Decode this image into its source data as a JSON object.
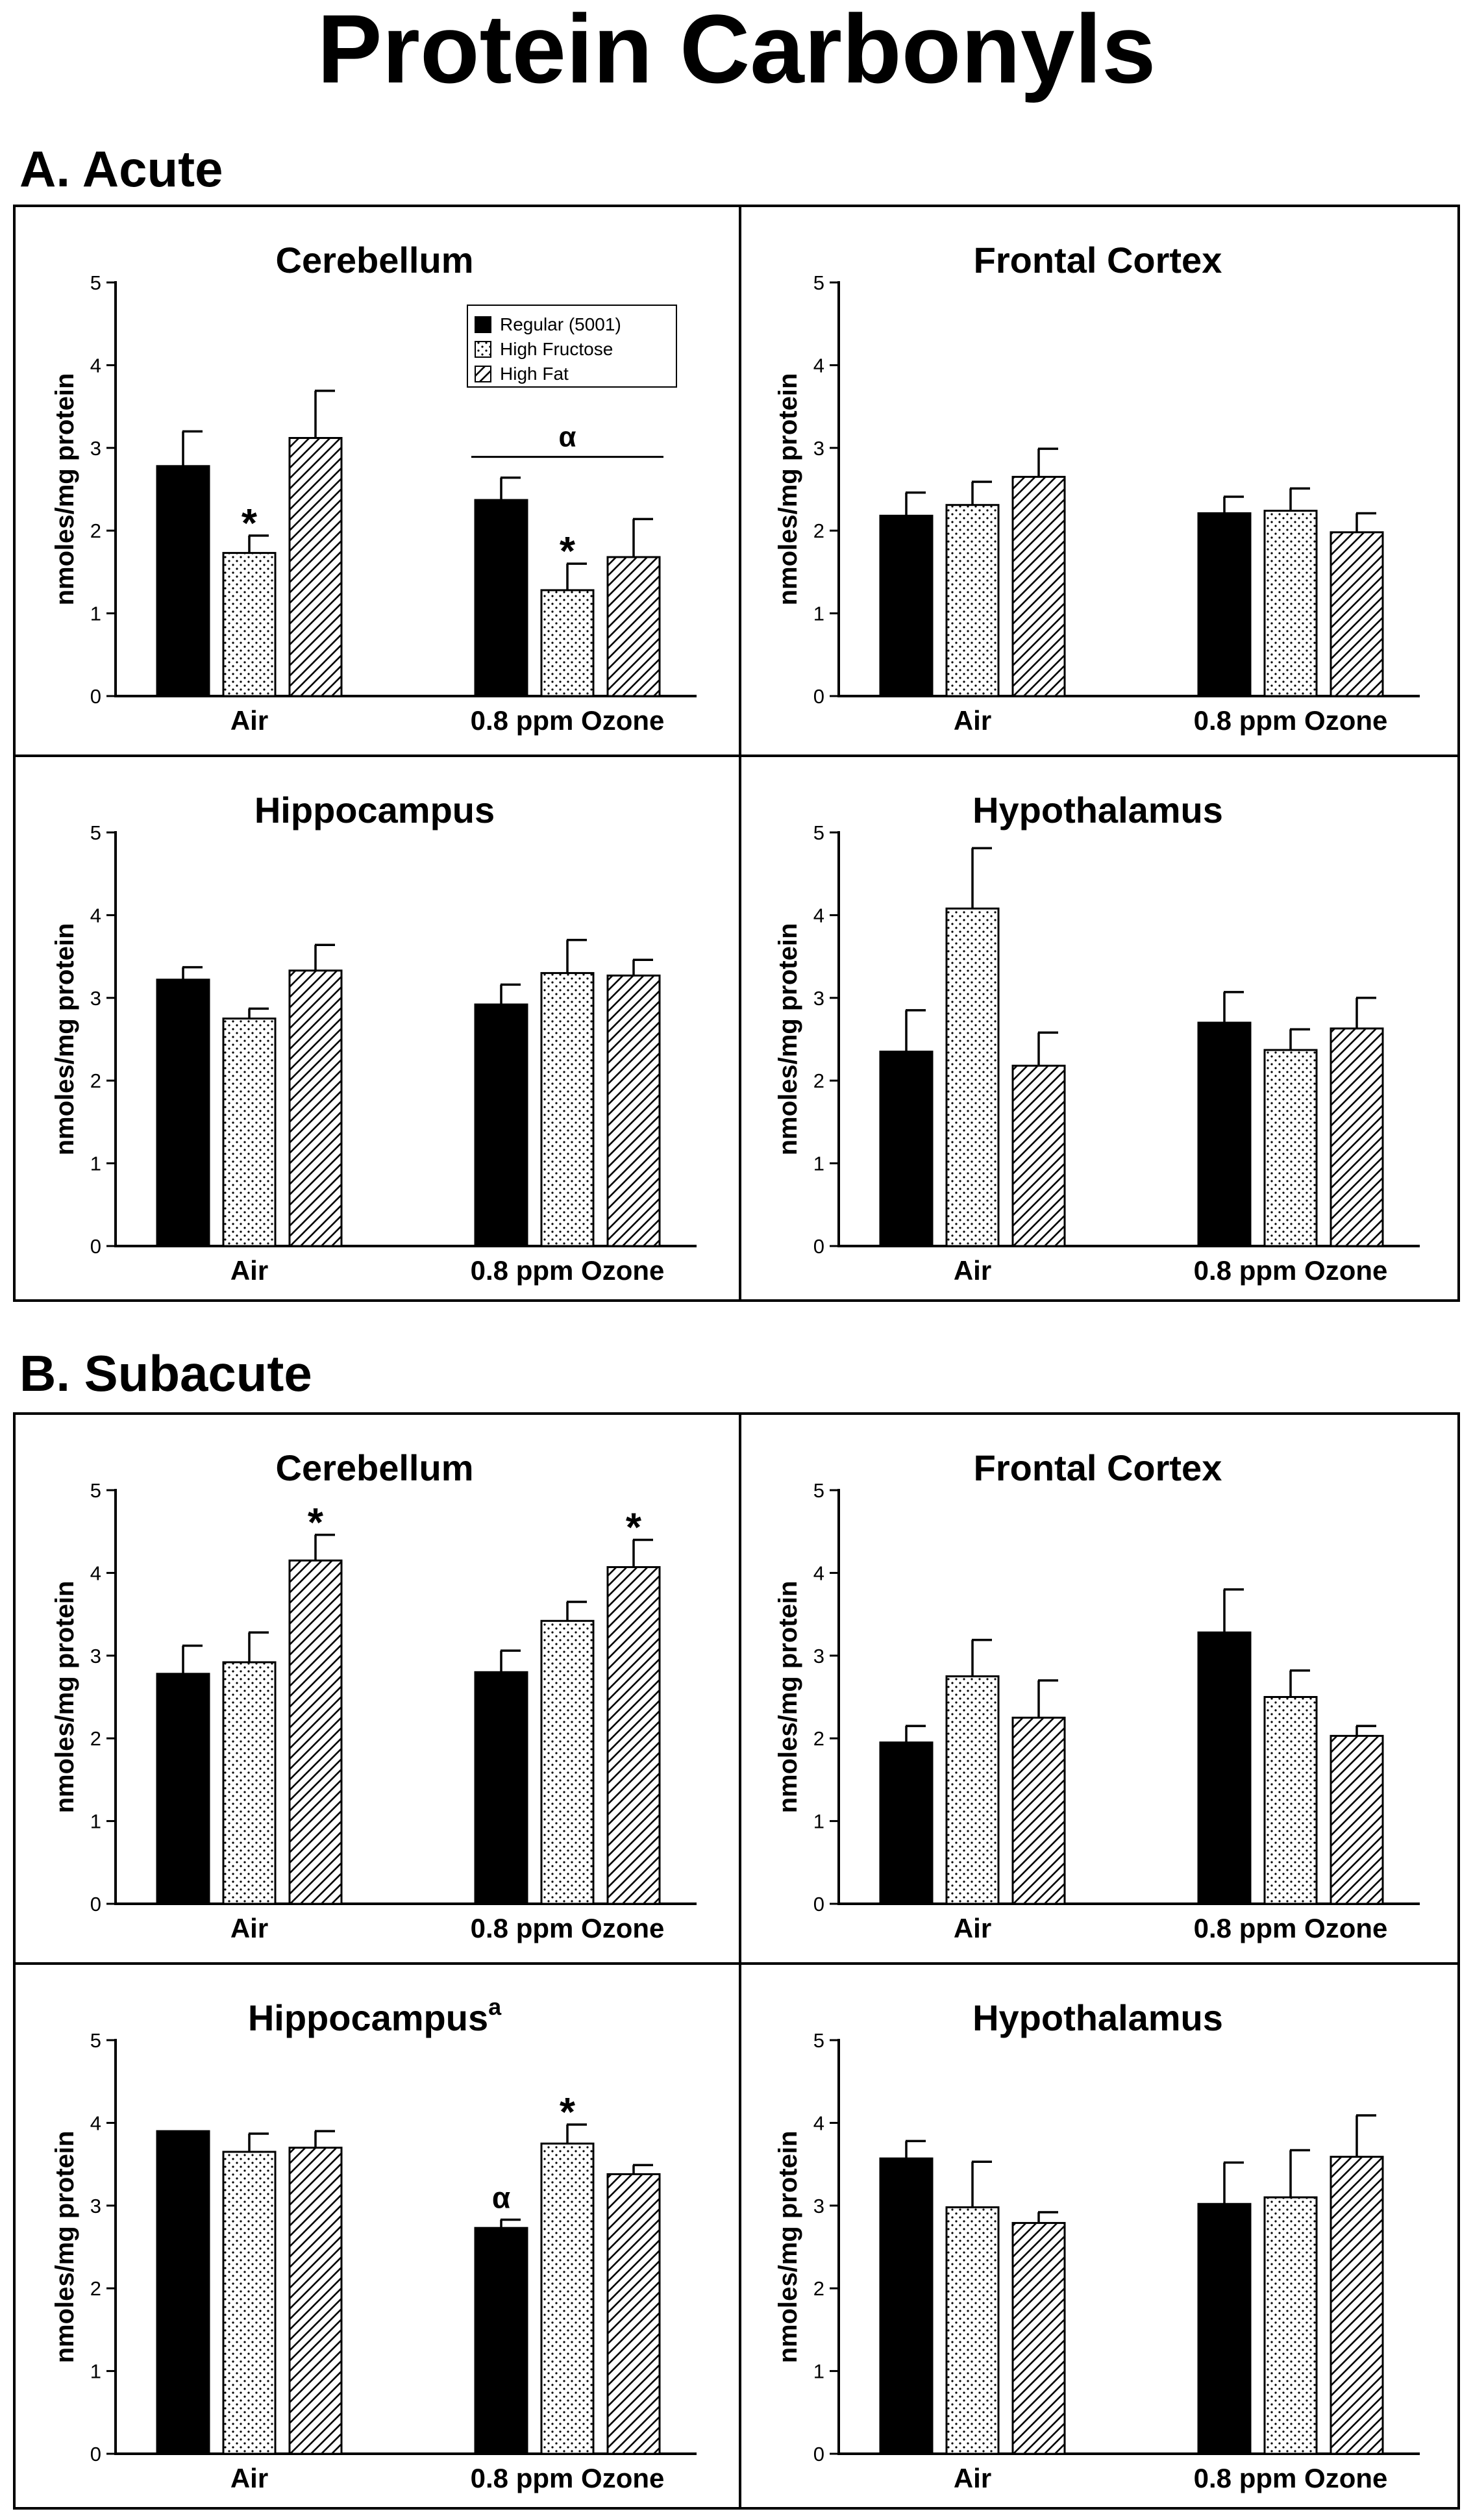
{
  "title": "Protein Carbonyls",
  "sections": [
    {
      "label": "A. Acute"
    },
    {
      "label": "B. Subacute"
    }
  ],
  "legend": {
    "items": [
      {
        "label": "Regular (5001)",
        "pattern": "solid"
      },
      {
        "label": "High Fructose",
        "pattern": "dots"
      },
      {
        "label": "High Fat",
        "pattern": "hatch"
      }
    ]
  },
  "chart_data": [
    {
      "type": "bar",
      "section": "A. Acute",
      "title": "Cerebellum",
      "title_sup": "",
      "ylabel": "nmoles/mg protein",
      "ylim": [
        0,
        5
      ],
      "yticks": [
        0,
        1,
        2,
        3,
        4,
        5
      ],
      "categories": [
        "Air",
        "0.8 ppm Ozone"
      ],
      "series": [
        {
          "name": "Regular (5001)",
          "values": [
            2.78,
            2.37
          ],
          "errors": [
            0.42,
            0.27
          ]
        },
        {
          "name": "High Fructose",
          "values": [
            1.73,
            1.28
          ],
          "errors": [
            0.21,
            0.32
          ]
        },
        {
          "name": "High Fat",
          "values": [
            3.12,
            1.68
          ],
          "errors": [
            0.57,
            0.46
          ]
        }
      ],
      "annotations": [
        {
          "text": "*",
          "category": 0,
          "series": 1
        },
        {
          "text": "*",
          "category": 1,
          "series": 1
        },
        {
          "text": "α",
          "category": 1,
          "span": "group"
        }
      ],
      "show_legend": true
    },
    {
      "type": "bar",
      "section": "A. Acute",
      "title": "Frontal Cortex",
      "title_sup": "",
      "ylabel": "nmoles/mg protein",
      "ylim": [
        0,
        5
      ],
      "yticks": [
        0,
        1,
        2,
        3,
        4,
        5
      ],
      "categories": [
        "Air",
        "0.8 ppm Ozone"
      ],
      "series": [
        {
          "name": "Regular (5001)",
          "values": [
            2.18,
            2.21
          ],
          "errors": [
            0.28,
            0.2
          ]
        },
        {
          "name": "High Fructose",
          "values": [
            2.31,
            2.24
          ],
          "errors": [
            0.28,
            0.27
          ]
        },
        {
          "name": "High Fat",
          "values": [
            2.65,
            1.98
          ],
          "errors": [
            0.34,
            0.23
          ]
        }
      ],
      "annotations": []
    },
    {
      "type": "bar",
      "section": "A. Acute",
      "title": "Hippocampus",
      "title_sup": "",
      "ylabel": "nmoles/mg protein",
      "ylim": [
        0,
        5
      ],
      "yticks": [
        0,
        1,
        2,
        3,
        4,
        5
      ],
      "categories": [
        "Air",
        "0.8 ppm Ozone"
      ],
      "series": [
        {
          "name": "Regular (5001)",
          "values": [
            3.22,
            2.92
          ],
          "errors": [
            0.15,
            0.24
          ]
        },
        {
          "name": "High Fructose",
          "values": [
            2.75,
            3.3
          ],
          "errors": [
            0.12,
            0.4
          ]
        },
        {
          "name": "High Fat",
          "values": [
            3.33,
            3.27
          ],
          "errors": [
            0.31,
            0.19
          ]
        }
      ],
      "annotations": []
    },
    {
      "type": "bar",
      "section": "A. Acute",
      "title": "Hypothalamus",
      "title_sup": "",
      "ylabel": "nmoles/mg protein",
      "ylim": [
        0,
        5
      ],
      "yticks": [
        0,
        1,
        2,
        3,
        4,
        5
      ],
      "categories": [
        "Air",
        "0.8 ppm Ozone"
      ],
      "series": [
        {
          "name": "Regular (5001)",
          "values": [
            2.35,
            2.7
          ],
          "errors": [
            0.5,
            0.37
          ]
        },
        {
          "name": "High Fructose",
          "values": [
            4.08,
            2.37
          ],
          "errors": [
            0.73,
            0.25
          ]
        },
        {
          "name": "High Fat",
          "values": [
            2.18,
            2.63
          ],
          "errors": [
            0.4,
            0.37
          ]
        }
      ],
      "annotations": []
    },
    {
      "type": "bar",
      "section": "B. Subacute",
      "title": "Cerebellum",
      "title_sup": "",
      "ylabel": "nmoles/mg protein",
      "ylim": [
        0,
        5
      ],
      "yticks": [
        0,
        1,
        2,
        3,
        4,
        5
      ],
      "categories": [
        "Air",
        "0.8 ppm Ozone"
      ],
      "series": [
        {
          "name": "Regular (5001)",
          "values": [
            2.78,
            2.8
          ],
          "errors": [
            0.34,
            0.26
          ]
        },
        {
          "name": "High Fructose",
          "values": [
            2.92,
            3.42
          ],
          "errors": [
            0.36,
            0.23
          ]
        },
        {
          "name": "High Fat",
          "values": [
            4.15,
            4.07
          ],
          "errors": [
            0.31,
            0.33
          ]
        }
      ],
      "annotations": [
        {
          "text": "*",
          "category": 0,
          "series": 2
        },
        {
          "text": "*",
          "category": 1,
          "series": 2
        }
      ]
    },
    {
      "type": "bar",
      "section": "B. Subacute",
      "title": "Frontal Cortex",
      "title_sup": "",
      "ylabel": "nmoles/mg protein",
      "ylim": [
        0,
        5
      ],
      "yticks": [
        0,
        1,
        2,
        3,
        4,
        5
      ],
      "categories": [
        "Air",
        "0.8 ppm Ozone"
      ],
      "series": [
        {
          "name": "Regular (5001)",
          "values": [
            1.95,
            3.28
          ],
          "errors": [
            0.2,
            0.52
          ]
        },
        {
          "name": "High Fructose",
          "values": [
            2.75,
            2.5
          ],
          "errors": [
            0.44,
            0.32
          ]
        },
        {
          "name": "High Fat",
          "values": [
            2.25,
            2.03
          ],
          "errors": [
            0.45,
            0.12
          ]
        }
      ],
      "annotations": []
    },
    {
      "type": "bar",
      "section": "B. Subacute",
      "title": "Hippocampus",
      "title_sup": "a",
      "ylabel": "nmoles/mg protein",
      "ylim": [
        0,
        5
      ],
      "yticks": [
        0,
        1,
        2,
        3,
        4,
        5
      ],
      "categories": [
        "Air",
        "0.8 ppm Ozone"
      ],
      "series": [
        {
          "name": "Regular (5001)",
          "values": [
            3.9,
            2.73
          ],
          "errors": [
            0.0,
            0.1
          ]
        },
        {
          "name": "High Fructose",
          "values": [
            3.65,
            3.75
          ],
          "errors": [
            0.22,
            0.23
          ]
        },
        {
          "name": "High Fat",
          "values": [
            3.7,
            3.38
          ],
          "errors": [
            0.2,
            0.11
          ]
        }
      ],
      "annotations": [
        {
          "text": "α",
          "category": 1,
          "series": 0
        },
        {
          "text": "*",
          "category": 1,
          "series": 1
        }
      ]
    },
    {
      "type": "bar",
      "section": "B. Subacute",
      "title": "Hypothalamus",
      "title_sup": "",
      "ylabel": "nmoles/mg protein",
      "ylim": [
        0,
        5
      ],
      "yticks": [
        0,
        1,
        2,
        3,
        4,
        5
      ],
      "categories": [
        "Air",
        "0.8 ppm Ozone"
      ],
      "series": [
        {
          "name": "Regular (5001)",
          "values": [
            3.57,
            3.02
          ],
          "errors": [
            0.21,
            0.5
          ]
        },
        {
          "name": "High Fructose",
          "values": [
            2.98,
            3.1
          ],
          "errors": [
            0.55,
            0.57
          ]
        },
        {
          "name": "High Fat",
          "values": [
            2.79,
            3.59
          ],
          "errors": [
            0.13,
            0.5
          ]
        }
      ],
      "annotations": []
    }
  ]
}
